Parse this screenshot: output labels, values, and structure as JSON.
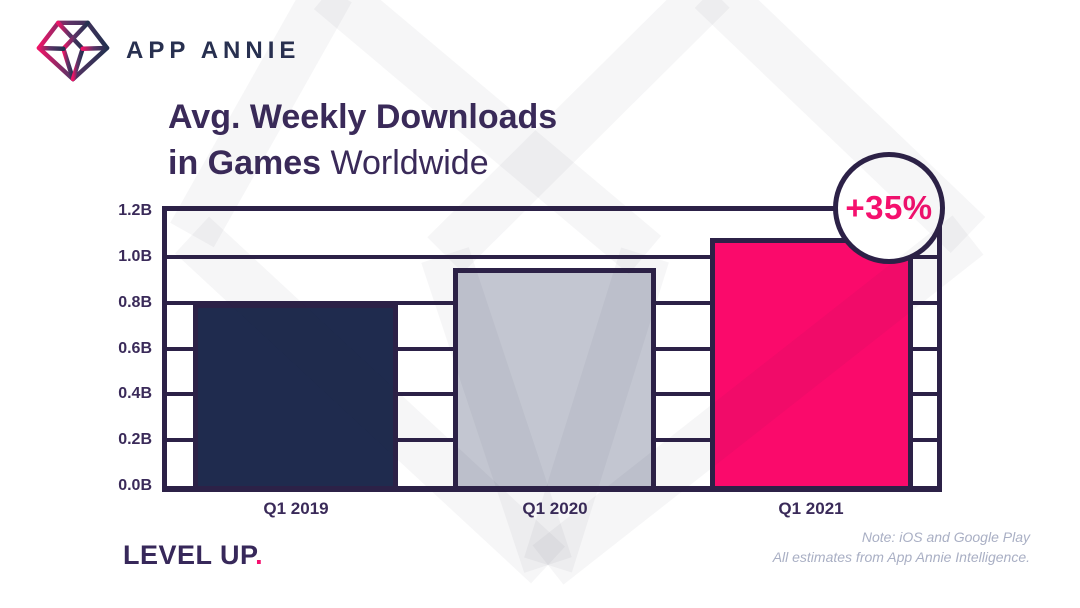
{
  "brand": {
    "logo_text": "APP ANNIE",
    "tagline": "LEVEL UP",
    "tagline_period": "."
  },
  "title": {
    "line1": "Avg. Weekly Downloads",
    "line2_bold": "in Games",
    "line2_regular": " Worldwide"
  },
  "note": {
    "line1": "Note: iOS and Google Play",
    "line2": "All estimates from App Annie Intelligence."
  },
  "icons": {
    "logo_gem": "gem-diamond-outline"
  },
  "colors": {
    "accent_pink": "#f5106e",
    "line_purple": "#2c2147",
    "text_purple": "#3a2a59",
    "bar_navy": "#1f2b4e",
    "bar_silver": "#c3c6d1",
    "bar_pink": "#fa0a6b",
    "note_gray": "#a9afc4",
    "logo_navy": "#283050"
  },
  "chart_data": {
    "type": "bar",
    "title": "Avg. Weekly Downloads in Games Worldwide",
    "categories": [
      "Q1 2019",
      "Q1 2020",
      "Q1 2021"
    ],
    "values": [
      0.8,
      0.95,
      1.08
    ],
    "unit": "B",
    "ylabel": "",
    "xlabel": "",
    "ylim": [
      0,
      1.2
    ],
    "ytick_interval": 0.2,
    "yticks": [
      "1.2B",
      "1.0B",
      "0.8B",
      "0.6B",
      "0.4B",
      "0.2B",
      "0.0B"
    ],
    "grid": true,
    "legend": false,
    "bar_colors": [
      "#1f2b4e",
      "#c3c6d1",
      "#fa0a6b"
    ],
    "annotation": {
      "label": "+35%",
      "target": "Q1 2021"
    }
  }
}
